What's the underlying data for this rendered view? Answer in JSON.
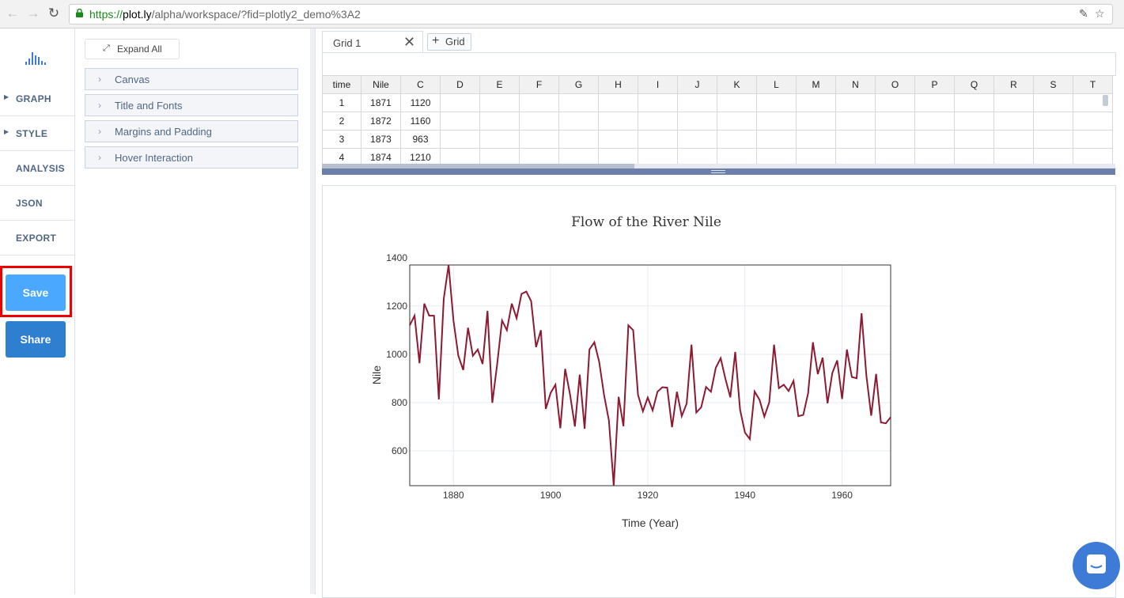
{
  "browser": {
    "url_scheme": "https://",
    "url_host": "plot.ly",
    "url_path": "/alpha/workspace/?fid=plotly2_demo%3A2",
    "back_icon": "back-arrow-icon",
    "forward_icon": "forward-arrow-icon",
    "reload_icon": "reload-icon"
  },
  "left_nav": {
    "items": [
      {
        "label": "GRAPH",
        "caret": true
      },
      {
        "label": "STYLE",
        "caret": true
      },
      {
        "label": "ANALYSIS",
        "caret": false
      },
      {
        "label": "JSON",
        "caret": false
      },
      {
        "label": "EXPORT",
        "caret": false
      }
    ],
    "save_label": "Save",
    "share_label": "Share",
    "save_color": "#4ba8ff",
    "share_color": "#2f7fd1",
    "highlight_color": "#e00000"
  },
  "panel": {
    "expand_all_label": "Expand All",
    "folds": [
      "Canvas",
      "Title and Fonts",
      "Margins and Padding",
      "Hover Interaction"
    ]
  },
  "grid": {
    "tab_label": "Grid 1",
    "add_grid_label": "Grid",
    "columns": [
      "time",
      "Nile",
      "C",
      "D",
      "E",
      "F",
      "G",
      "H",
      "I",
      "J",
      "K",
      "L",
      "M",
      "N",
      "O",
      "P",
      "Q",
      "R",
      "S",
      "T"
    ],
    "rows": [
      [
        "1",
        "1871",
        "1120"
      ],
      [
        "2",
        "1872",
        "1160"
      ],
      [
        "3",
        "1873",
        "963"
      ],
      [
        "4",
        "1874",
        "1210"
      ]
    ]
  },
  "chart_data": {
    "type": "line",
    "title": "Flow of the River Nile",
    "xlabel": "Time (Year)",
    "ylabel": "Nile",
    "xlim": [
      1871,
      1970
    ],
    "ylim": [
      456,
      1370
    ],
    "xticks": [
      1880,
      1900,
      1920,
      1940,
      1960
    ],
    "yticks": [
      600,
      800,
      1000,
      1200,
      1400
    ],
    "grid": true,
    "line_color": "#8c1a32",
    "x": [
      1871,
      1872,
      1873,
      1874,
      1875,
      1876,
      1877,
      1878,
      1879,
      1880,
      1881,
      1882,
      1883,
      1884,
      1885,
      1886,
      1887,
      1888,
      1889,
      1890,
      1891,
      1892,
      1893,
      1894,
      1895,
      1896,
      1897,
      1898,
      1899,
      1900,
      1901,
      1902,
      1903,
      1904,
      1905,
      1906,
      1907,
      1908,
      1909,
      1910,
      1911,
      1912,
      1913,
      1914,
      1915,
      1916,
      1917,
      1918,
      1919,
      1920,
      1921,
      1922,
      1923,
      1924,
      1925,
      1926,
      1927,
      1928,
      1929,
      1930,
      1931,
      1932,
      1933,
      1934,
      1935,
      1936,
      1937,
      1938,
      1939,
      1940,
      1941,
      1942,
      1943,
      1944,
      1945,
      1946,
      1947,
      1948,
      1949,
      1950,
      1951,
      1952,
      1953,
      1954,
      1955,
      1956,
      1957,
      1958,
      1959,
      1960,
      1961,
      1962,
      1963,
      1964,
      1965,
      1966,
      1967,
      1968,
      1969,
      1970
    ],
    "y": [
      1120,
      1160,
      963,
      1210,
      1160,
      1160,
      813,
      1230,
      1370,
      1140,
      995,
      935,
      1110,
      994,
      1020,
      960,
      1180,
      799,
      958,
      1140,
      1100,
      1210,
      1150,
      1250,
      1260,
      1220,
      1030,
      1100,
      774,
      840,
      874,
      694,
      940,
      833,
      701,
      916,
      692,
      1020,
      1050,
      969,
      831,
      726,
      456,
      824,
      702,
      1120,
      1100,
      832,
      764,
      821,
      768,
      845,
      864,
      862,
      698,
      845,
      744,
      796,
      1040,
      759,
      781,
      865,
      845,
      944,
      984,
      897,
      822,
      1010,
      771,
      676,
      649,
      846,
      812,
      742,
      801,
      1040,
      860,
      874,
      848,
      890,
      744,
      749,
      838,
      1050,
      918,
      986,
      797,
      923,
      975,
      815,
      1020,
      906,
      901,
      1170,
      912,
      746,
      919,
      718,
      714,
      740
    ]
  }
}
